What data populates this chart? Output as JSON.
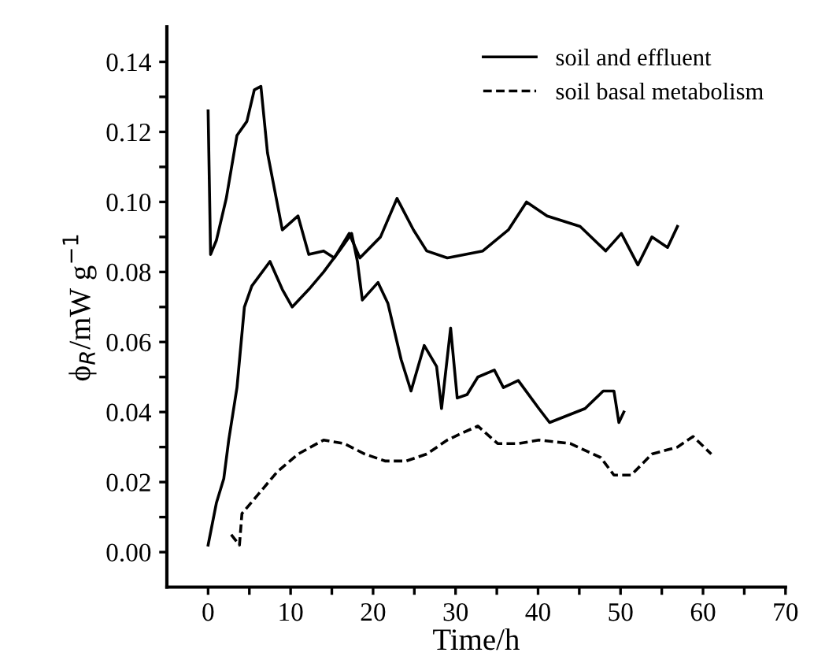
{
  "chart_data": {
    "type": "line",
    "xlabel": "Time/h",
    "ylabel": "ϕ$_{R}$/mW g$^{−1}$",
    "xlim": [
      -5,
      70
    ],
    "xticks": [
      0,
      {
        "value": 5,
        "label": null
      },
      10,
      {
        "value": 15,
        "label": null
      },
      20,
      {
        "value": 25,
        "label": null
      },
      30,
      {
        "value": 35,
        "label": null
      },
      40,
      {
        "value": 45,
        "label": null
      },
      50,
      {
        "value": 55,
        "label": null
      },
      60,
      {
        "value": 65,
        "label": null
      },
      70
    ],
    "ylim": [
      -0.01,
      0.15
    ],
    "yticks": [
      {
        "value": 0,
        "label": "0.00"
      },
      {
        "value": 0.01,
        "label": null
      },
      {
        "value": 0.02,
        "label": "0.02"
      },
      {
        "value": 0.03,
        "label": null
      },
      {
        "value": 0.04,
        "label": "0.04"
      },
      {
        "value": 0.05,
        "label": null
      },
      {
        "value": 0.06,
        "label": "0.06"
      },
      {
        "value": 0.07,
        "label": null
      },
      {
        "value": 0.08,
        "label": "0.08"
      },
      {
        "value": 0.09,
        "label": null
      },
      {
        "value": 0.1,
        "label": "0.10"
      },
      {
        "value": 0.11,
        "label": null
      },
      {
        "value": 0.12,
        "label": "0.12"
      },
      {
        "value": 0.13,
        "label": null
      },
      {
        "value": 0.14,
        "label": "0.14"
      }
    ],
    "grid": false,
    "legend": "top right",
    "marker": "none",
    "series": [
      {
        "name": "soil and effluent",
        "color": "#000000",
        "line_style": "solid",
        "x": [
          0,
          0.3,
          1.0,
          2.2,
          3.5,
          4.7,
          5.6,
          6.4,
          7.2,
          9.0,
          10.9,
          12.2,
          14.0,
          15.3,
          17.1,
          18.4,
          20.9,
          22.9,
          24.9,
          26.5,
          29.0,
          33.3,
          36.4,
          38.6,
          41.1,
          45.1,
          48.2,
          50.1,
          52.1,
          53.8,
          55.7,
          56.9
        ],
        "values": [
          0.126,
          0.085,
          0.089,
          0.101,
          0.119,
          0.123,
          0.132,
          0.133,
          0.114,
          0.092,
          0.096,
          0.085,
          0.086,
          0.084,
          0.091,
          0.084,
          0.09,
          0.101,
          0.092,
          0.086,
          0.084,
          0.086,
          0.092,
          0.1,
          0.096,
          0.093,
          0.086,
          0.091,
          0.082,
          0.09,
          0.087,
          0.093
        ]
      },
      {
        "color": "#000000",
        "line_style": "solid",
        "x": [
          0,
          1.0,
          1.9,
          2.5,
          3.5,
          4.4,
          5.3,
          7.5,
          9.0,
          10.2,
          12.2,
          14.0,
          15.9,
          17.4,
          18.1,
          18.7,
          20.6,
          21.8,
          23.4,
          24.6,
          26.2,
          27.7,
          28.3,
          29.4,
          30.2,
          31.4,
          32.7,
          34.7,
          35.8,
          37.6,
          40.1,
          41.4,
          45.7,
          47.9,
          49.2,
          49.8,
          50.4
        ],
        "values": [
          0.002,
          0.014,
          0.021,
          0.032,
          0.047,
          0.07,
          0.076,
          0.083,
          0.075,
          0.07,
          0.075,
          0.08,
          0.086,
          0.091,
          0.083,
          0.072,
          0.077,
          0.071,
          0.055,
          0.046,
          0.059,
          0.053,
          0.041,
          0.064,
          0.044,
          0.045,
          0.05,
          0.052,
          0.047,
          0.049,
          0.041,
          0.037,
          0.041,
          0.046,
          0.046,
          0.037,
          0.04
        ]
      },
      {
        "name": "soil basal metabolism",
        "color": "#000000",
        "line_style": "dashed",
        "x": [
          2.8,
          3.8,
          4.1,
          5.9,
          8.4,
          10.9,
          14.0,
          16.5,
          19.0,
          21.5,
          24.0,
          26.5,
          29.0,
          30.8,
          32.7,
          35.1,
          37.6,
          40.1,
          43.9,
          47.6,
          49.2,
          51.3,
          53.8,
          56.9,
          58.8,
          61.0
        ],
        "values": [
          0.005,
          0.002,
          0.011,
          0.016,
          0.023,
          0.028,
          0.032,
          0.031,
          0.028,
          0.026,
          0.026,
          0.028,
          0.032,
          0.034,
          0.036,
          0.031,
          0.031,
          0.032,
          0.031,
          0.027,
          0.022,
          0.022,
          0.028,
          0.03,
          0.033,
          0.028
        ]
      }
    ]
  }
}
